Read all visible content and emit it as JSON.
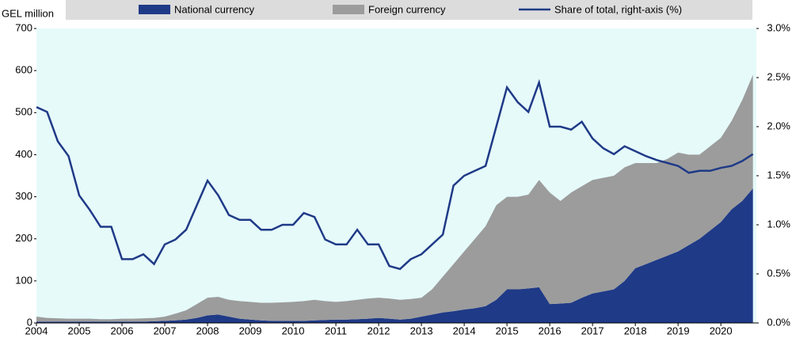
{
  "chart_data": {
    "type": "area",
    "y_label": "GEL million",
    "x": [
      2004,
      2004.25,
      2004.5,
      2004.75,
      2005,
      2005.25,
      2005.5,
      2005.75,
      2006,
      2006.25,
      2006.5,
      2006.75,
      2007,
      2007.25,
      2007.5,
      2007.75,
      2008,
      2008.25,
      2008.5,
      2008.75,
      2009,
      2009.25,
      2009.5,
      2009.75,
      2010,
      2010.25,
      2010.5,
      2010.75,
      2011,
      2011.25,
      2011.5,
      2011.75,
      2012,
      2012.25,
      2012.5,
      2012.75,
      2013,
      2013.25,
      2013.5,
      2013.75,
      2014,
      2014.25,
      2014.5,
      2014.75,
      2015,
      2015.25,
      2015.5,
      2015.75,
      2016,
      2016.25,
      2016.5,
      2016.75,
      2017,
      2017.25,
      2017.5,
      2017.75,
      2018,
      2018.25,
      2018.5,
      2018.75,
      2019,
      2019.25,
      2019.5,
      2019.75,
      2020,
      2020.25,
      2020.5,
      2020.75
    ],
    "series": [
      {
        "name": "National currency",
        "color": "#1f3a87",
        "stacked": true,
        "values": [
          3,
          3,
          3,
          3,
          3,
          3,
          3,
          3,
          3,
          3,
          3,
          4,
          5,
          6,
          8,
          12,
          18,
          20,
          15,
          10,
          8,
          6,
          5,
          5,
          5,
          5,
          6,
          7,
          8,
          8,
          9,
          10,
          12,
          10,
          8,
          10,
          15,
          20,
          25,
          28,
          32,
          35,
          40,
          55,
          80,
          80,
          82,
          85,
          45,
          46,
          48,
          60,
          70,
          75,
          80,
          100,
          130,
          140,
          150,
          160,
          170,
          185,
          200,
          220,
          240,
          270,
          290,
          320
        ]
      },
      {
        "name": "Foreign currency",
        "color": "#9c9c9c",
        "stacked": true,
        "values": [
          12,
          9,
          8,
          7,
          7,
          7,
          6,
          6,
          7,
          7,
          8,
          8,
          10,
          16,
          22,
          33,
          42,
          42,
          40,
          42,
          42,
          42,
          43,
          44,
          45,
          47,
          49,
          45,
          42,
          44,
          46,
          48,
          48,
          48,
          47,
          47,
          45,
          60,
          85,
          112,
          138,
          165,
          190,
          225,
          220,
          220,
          223,
          255,
          265,
          244,
          262,
          265,
          270,
          270,
          270,
          270,
          250,
          240,
          230,
          230,
          235,
          215,
          200,
          200,
          200,
          210,
          240,
          270
        ]
      },
      {
        "name": "Share of total, right-axis (%)",
        "color": "#1f3a87",
        "axis": "y2",
        "line": true,
        "values": [
          2.2,
          2.15,
          1.85,
          1.7,
          1.3,
          1.15,
          0.98,
          0.98,
          0.65,
          0.65,
          0.7,
          0.6,
          0.8,
          0.85,
          0.95,
          1.2,
          1.45,
          1.3,
          1.1,
          1.05,
          1.05,
          0.95,
          0.95,
          1.0,
          1.0,
          1.12,
          1.08,
          0.85,
          0.8,
          0.8,
          0.95,
          0.8,
          0.8,
          0.58,
          0.55,
          0.65,
          0.7,
          0.8,
          0.9,
          1.4,
          1.5,
          1.55,
          1.6,
          2.0,
          2.4,
          2.25,
          2.15,
          2.45,
          2.0,
          2.0,
          1.97,
          2.05,
          1.88,
          1.78,
          1.72,
          1.8,
          1.75,
          1.7,
          1.66,
          1.63,
          1.6,
          1.53,
          1.55,
          1.55,
          1.58,
          1.6,
          1.65,
          1.72
        ]
      }
    ],
    "xlim": [
      2004,
      2020.83
    ],
    "xticks": [
      2004,
      2005,
      2006,
      2007,
      2008,
      2009,
      2010,
      2011,
      2012,
      2013,
      2014,
      2015,
      2016,
      2017,
      2018,
      2019,
      2020
    ],
    "ylim": [
      0,
      700
    ],
    "yticks": [
      0,
      100,
      200,
      300,
      400,
      500,
      600,
      700
    ],
    "y2lim": [
      0,
      3
    ],
    "y2ticks": [
      {
        "value": 0,
        "label": "0.0%"
      },
      {
        "value": 0.5,
        "label": "0.5%"
      },
      {
        "value": 1,
        "label": "1.0%"
      },
      {
        "value": 1.5,
        "label": "1.5%"
      },
      {
        "value": 2,
        "label": "2.0%"
      },
      {
        "value": 2.5,
        "label": "2.5%"
      },
      {
        "value": 3,
        "label": "3.0%"
      }
    ],
    "background": "#e6fafa"
  }
}
